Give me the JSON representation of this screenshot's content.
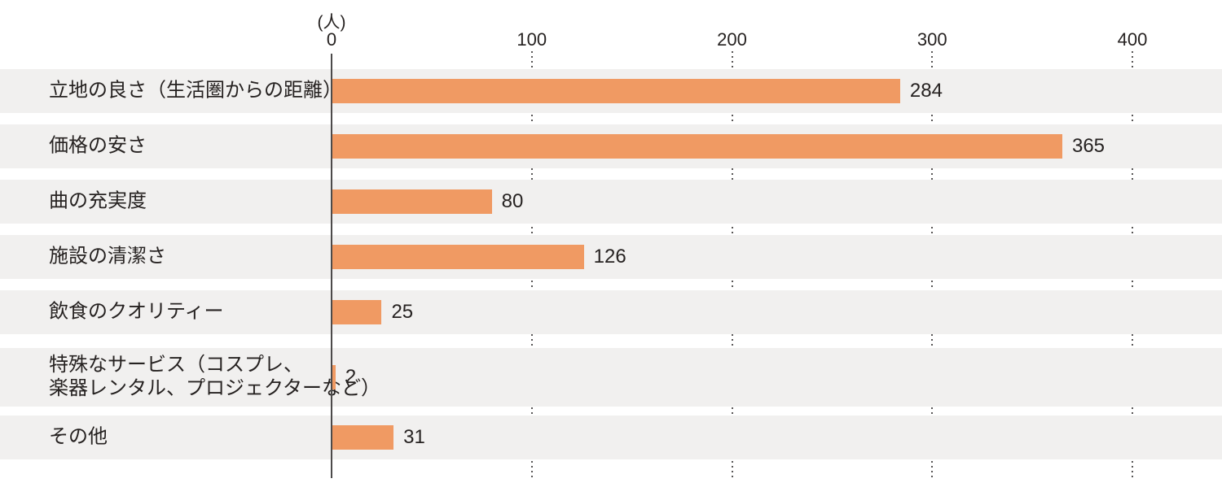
{
  "chart_data": {
    "type": "bar",
    "orientation": "horizontal",
    "title": "",
    "unit_label": "(人)",
    "categories": [
      "立地の良さ（生活圏からの距離）",
      "価格の安さ",
      "曲の充実度",
      "施設の清潔さ",
      "飲食のクオリティー",
      "特殊なサービス（コスプレ、\n楽器レンタル、プロジェクターなど）",
      "その他"
    ],
    "values": [
      284,
      365,
      80,
      126,
      25,
      2,
      31
    ],
    "value_labels": [
      "284",
      "365",
      "80",
      "126",
      "25",
      "2",
      "31"
    ],
    "xlim": [
      0,
      440
    ],
    "ticks": [
      0,
      100,
      200,
      300,
      400
    ],
    "grid": "dotted-vertical-at-ticks",
    "legend": "none",
    "bar_color": "#f09a63",
    "row_band_color": "#f1f0ef",
    "axis_line_color": "#4c4a4a",
    "text_color": "#262221"
  }
}
